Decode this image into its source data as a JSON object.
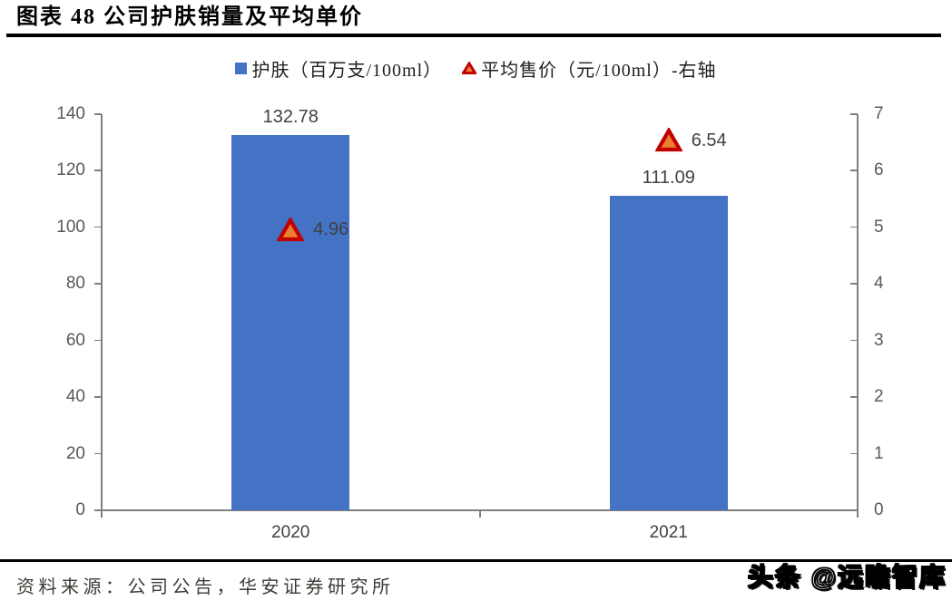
{
  "header": {
    "title": "图表 48  公司护肤销量及平均单价"
  },
  "legend": {
    "items": [
      {
        "label": "护肤（百万支/100ml）",
        "marker": "square"
      },
      {
        "label": "平均售价（元/100ml）-右轴",
        "marker": "triangle"
      }
    ]
  },
  "chart_data": {
    "type": "bar",
    "title": "公司护肤销量及平均单价",
    "categories": [
      "2020",
      "2021"
    ],
    "series": [
      {
        "name": "护肤（百万支/100ml）",
        "type": "bar",
        "axis": "left",
        "values": [
          132.78,
          111.09
        ],
        "color": "#4472C4"
      },
      {
        "name": "平均售价（元/100ml）-右轴",
        "type": "scatter",
        "marker": "triangle",
        "axis": "right",
        "values": [
          4.96,
          6.54
        ],
        "marker_fill": "#ED7D31",
        "marker_stroke": "#C00000"
      }
    ],
    "left_axis": {
      "min": 0,
      "max": 140,
      "step": 20
    },
    "right_axis": {
      "min": 0,
      "max": 7,
      "step": 1
    },
    "grid": false,
    "legend_position": "top",
    "data_labels": true
  },
  "colors": {
    "bar": "#4472C4",
    "triangle_fill": "#ED7D31",
    "triangle_stroke": "#C00000",
    "axis_line": "#7F7F7F",
    "tick_text": "#595959",
    "data_label_text": "#404040"
  },
  "footer": {
    "source": "资料来源：公司公告，华安证券研究所",
    "watermark": "头条 @远瞻智库"
  }
}
